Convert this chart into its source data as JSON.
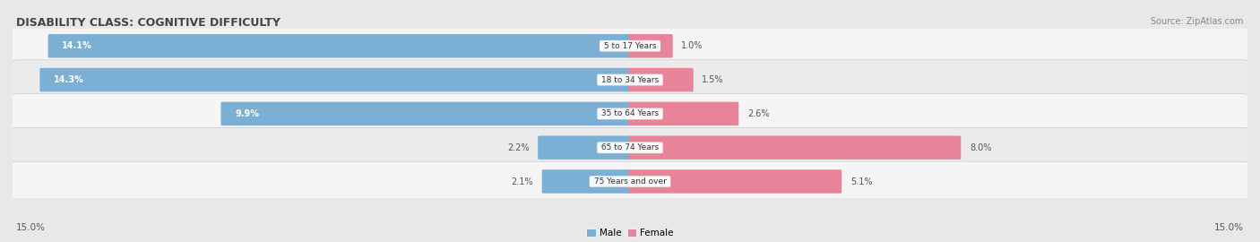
{
  "title": "DISABILITY CLASS: COGNITIVE DIFFICULTY",
  "source": "Source: ZipAtlas.com",
  "categories": [
    "5 to 17 Years",
    "18 to 34 Years",
    "35 to 64 Years",
    "65 to 74 Years",
    "75 Years and over"
  ],
  "male_values": [
    14.1,
    14.3,
    9.9,
    2.2,
    2.1
  ],
  "female_values": [
    1.0,
    1.5,
    2.6,
    8.0,
    5.1
  ],
  "male_color": "#7bafd4",
  "female_color": "#e8849a",
  "male_color_light": "#aecce4",
  "female_color_light": "#f0aabb",
  "male_label": "Male",
  "female_label": "Female",
  "x_max": 15.0,
  "x_min": -15.0,
  "axis_label_left": "15.0%",
  "axis_label_right": "15.0%",
  "background_color": "#e8e8e8",
  "row_bg_even": "#f5f5f5",
  "row_bg_odd": "#ebebeb",
  "title_fontsize": 9,
  "bar_height": 0.62,
  "label_color_white": "#ffffff",
  "label_color_dark": "#555555"
}
